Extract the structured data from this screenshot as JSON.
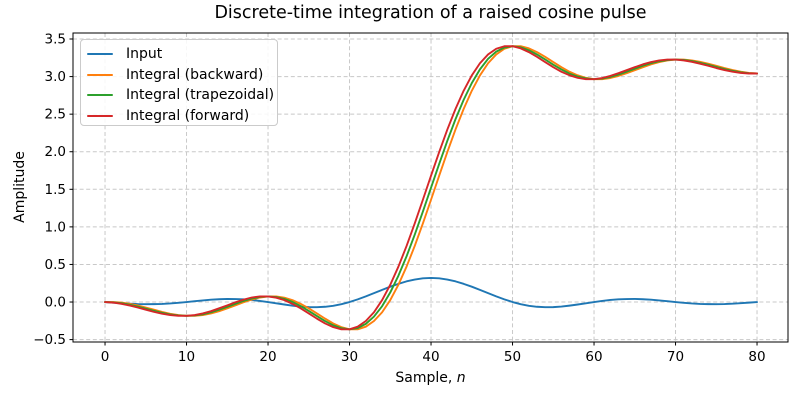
{
  "chart_data": {
    "type": "line",
    "title": "Discrete-time integration of a raised cosine pulse",
    "xlabel": "Sample, n",
    "xlabel_prefix": "Sample, ",
    "xlabel_var": "n",
    "ylabel": "Amplitude",
    "xlim": [
      -3.93,
      83.8
    ],
    "ylim": [
      -0.532,
      3.58
    ],
    "x_ticks": [
      0,
      10,
      20,
      30,
      40,
      50,
      60,
      70,
      80
    ],
    "y_ticks": [
      -0.5,
      0.0,
      0.5,
      1.0,
      1.5,
      2.0,
      2.5,
      3.0,
      3.5
    ],
    "grid": true,
    "grid_style": "dashed",
    "legend_position": "upper left",
    "background": "#ffffff",
    "x": [
      0,
      1,
      2,
      3,
      4,
      5,
      6,
      7,
      8,
      9,
      10,
      11,
      12,
      13,
      14,
      15,
      16,
      17,
      18,
      19,
      20,
      21,
      22,
      23,
      24,
      25,
      26,
      27,
      28,
      29,
      30,
      31,
      32,
      33,
      34,
      35,
      36,
      37,
      38,
      39,
      40,
      41,
      42,
      43,
      44,
      45,
      46,
      47,
      48,
      49,
      50,
      51,
      52,
      53,
      54,
      55,
      56,
      57,
      58,
      59,
      60,
      61,
      62,
      63,
      64,
      65,
      66,
      67,
      68,
      69,
      70,
      71,
      72,
      73,
      74,
      75,
      76,
      77,
      78,
      79,
      80
    ],
    "series": [
      {
        "name": "Input",
        "color": "#1f77b4",
        "values": [
          0,
          -0.008,
          -0.016,
          -0.022,
          -0.027,
          -0.029,
          -0.028,
          -0.025,
          -0.019,
          -0.01,
          0,
          0.011,
          0.021,
          0.031,
          0.037,
          0.041,
          0.04,
          0.036,
          0.027,
          0.015,
          0,
          -0.017,
          -0.033,
          -0.048,
          -0.061,
          -0.068,
          -0.069,
          -0.063,
          -0.05,
          -0.029,
          0,
          0.035,
          0.075,
          0.118,
          0.161,
          0.204,
          0.242,
          0.275,
          0.299,
          0.315,
          0.32,
          0.315,
          0.299,
          0.275,
          0.242,
          0.204,
          0.161,
          0.118,
          0.075,
          0.035,
          0,
          -0.029,
          -0.05,
          -0.063,
          -0.069,
          -0.068,
          -0.061,
          -0.048,
          -0.033,
          -0.017,
          0,
          0.015,
          0.027,
          0.036,
          0.04,
          0.041,
          0.037,
          0.031,
          0.021,
          0.011,
          0,
          -0.01,
          -0.019,
          -0.025,
          -0.028,
          -0.029,
          -0.027,
          -0.022,
          -0.016,
          -0.008,
          0
        ]
      },
      {
        "name": "Integral (backward)",
        "color": "#ff7f0e",
        "values": [
          0,
          0.0,
          -0.008,
          -0.024,
          -0.046,
          -0.073,
          -0.102,
          -0.131,
          -0.156,
          -0.174,
          -0.184,
          -0.184,
          -0.174,
          -0.152,
          -0.122,
          -0.084,
          -0.044,
          -0.003,
          0.032,
          0.06,
          0.075,
          0.075,
          0.058,
          0.025,
          -0.024,
          -0.084,
          -0.152,
          -0.221,
          -0.285,
          -0.334,
          -0.363,
          -0.363,
          -0.328,
          -0.253,
          -0.136,
          0.026,
          0.23,
          0.472,
          0.746,
          1.046,
          1.361,
          1.681,
          1.995,
          2.295,
          2.569,
          2.811,
          3.015,
          3.177,
          3.295,
          3.37,
          3.404,
          3.404,
          3.376,
          3.326,
          3.263,
          3.193,
          3.125,
          3.064,
          3.017,
          2.983,
          2.966,
          2.966,
          2.981,
          3.009,
          3.045,
          3.085,
          3.125,
          3.163,
          3.193,
          3.215,
          3.226,
          3.226,
          3.215,
          3.196,
          3.172,
          3.144,
          3.114,
          3.087,
          3.065,
          3.049,
          3.041
        ]
      },
      {
        "name": "Integral (trapezoidal)",
        "color": "#2ca02c",
        "values": [
          0,
          -0.004,
          -0.016,
          -0.035,
          -0.06,
          -0.088,
          -0.116,
          -0.143,
          -0.165,
          -0.179,
          -0.184,
          -0.179,
          -0.163,
          -0.137,
          -0.103,
          -0.064,
          -0.024,
          0.015,
          0.046,
          0.067,
          0.075,
          0.066,
          0.042,
          0.001,
          -0.054,
          -0.118,
          -0.187,
          -0.253,
          -0.31,
          -0.349,
          -0.363,
          -0.346,
          -0.291,
          -0.194,
          -0.055,
          0.128,
          0.351,
          0.609,
          0.896,
          1.203,
          1.521,
          1.838,
          2.145,
          2.432,
          2.69,
          2.913,
          3.096,
          3.236,
          3.332,
          3.387,
          3.404,
          3.39,
          3.351,
          3.294,
          3.228,
          3.159,
          3.095,
          3.04,
          3.0,
          2.975,
          2.966,
          2.974,
          2.995,
          3.027,
          3.065,
          3.105,
          3.144,
          3.178,
          3.204,
          3.22,
          3.226,
          3.221,
          3.206,
          3.184,
          3.158,
          3.129,
          3.101,
          3.076,
          3.057,
          3.045,
          3.041
        ]
      },
      {
        "name": "Integral (forward)",
        "color": "#d62728",
        "values": [
          0,
          -0.008,
          -0.024,
          -0.046,
          -0.073,
          -0.102,
          -0.131,
          -0.156,
          -0.174,
          -0.184,
          -0.184,
          -0.174,
          -0.152,
          -0.122,
          -0.084,
          -0.044,
          -0.003,
          0.032,
          0.06,
          0.075,
          0.075,
          0.058,
          0.025,
          -0.024,
          -0.084,
          -0.152,
          -0.221,
          -0.285,
          -0.334,
          -0.363,
          -0.363,
          -0.328,
          -0.253,
          -0.136,
          0.026,
          0.23,
          0.472,
          0.746,
          1.046,
          1.361,
          1.681,
          1.995,
          2.295,
          2.569,
          2.811,
          3.015,
          3.177,
          3.295,
          3.37,
          3.404,
          3.404,
          3.376,
          3.326,
          3.263,
          3.193,
          3.125,
          3.064,
          3.017,
          2.983,
          2.966,
          2.966,
          2.981,
          3.009,
          3.045,
          3.085,
          3.125,
          3.163,
          3.193,
          3.215,
          3.226,
          3.226,
          3.215,
          3.196,
          3.172,
          3.144,
          3.114,
          3.087,
          3.065,
          3.049,
          3.041,
          3.041
        ]
      }
    ]
  }
}
